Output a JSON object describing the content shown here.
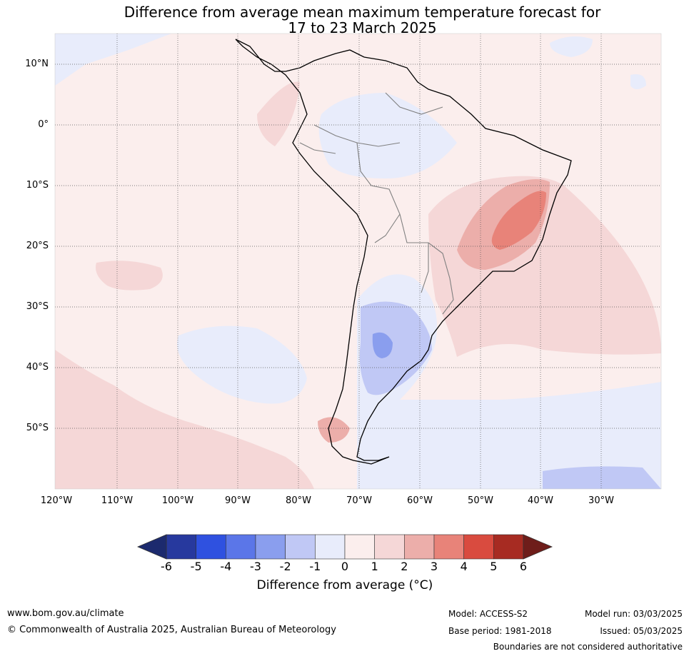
{
  "title": {
    "line1": "Difference from average mean maximum temperature forecast for",
    "line2": "17 to 23 March 2025"
  },
  "map": {
    "latitude_labels": [
      "10°N",
      "0°",
      "10°S",
      "20°S",
      "30°S",
      "40°S",
      "50°S"
    ],
    "longitude_labels": [
      "120°W",
      "110°W",
      "100°W",
      "90°W",
      "80°W",
      "70°W",
      "60°W",
      "50°W",
      "40°W",
      "30°W"
    ],
    "extent": {
      "lon_min": -120,
      "lon_max": -20,
      "lat_min": -60,
      "lat_max": 15
    },
    "gridlines": true
  },
  "colorbar": {
    "ticks": [
      "-6",
      "-5",
      "-4",
      "-3",
      "-2",
      "-1",
      "0",
      "1",
      "2",
      "3",
      "4",
      "5",
      "6"
    ],
    "colors": [
      "#27399e",
      "#2f51e0",
      "#5b76e8",
      "#8a9eee",
      "#c0c8f5",
      "#e8ecfb",
      "#fbeeed",
      "#f5d7d7",
      "#ecaeaa",
      "#e88379",
      "#d94b3f",
      "#a72b22"
    ],
    "under_color": "#1c2a6e",
    "over_color": "#6e1d1a",
    "label": "Difference from average (°C)"
  },
  "footer": {
    "website": "www.bom.gov.au/climate",
    "copyright": "© Commonwealth of Australia 2025, Australian Bureau of Meteorology",
    "model": "Model: ACCESS-S2",
    "model_run": "Model run: 03/03/2025",
    "base_period": "Base period: 1981-2018",
    "issued": "Issued: 05/03/2025",
    "disclaimer": "Boundaries are not considered authoritative"
  }
}
